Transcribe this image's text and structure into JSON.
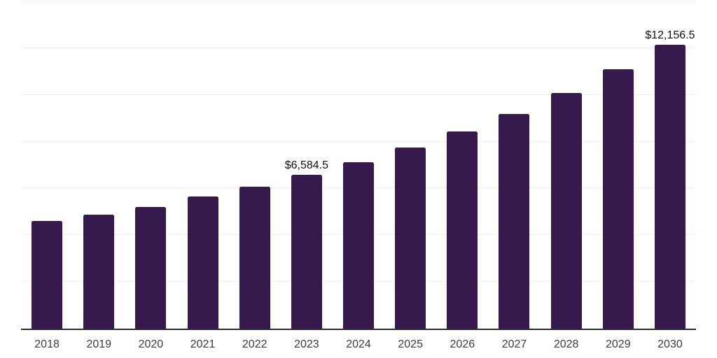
{
  "chart_data": {
    "type": "bar",
    "title": "",
    "xlabel": "",
    "ylabel": "",
    "categories": [
      "2018",
      "2019",
      "2020",
      "2021",
      "2022",
      "2023",
      "2024",
      "2025",
      "2026",
      "2027",
      "2028",
      "2029",
      "2030"
    ],
    "values": [
      4595,
      4890,
      5220,
      5640,
      6085,
      6584.5,
      7130,
      7760,
      8440,
      9190,
      10085,
      11100,
      12156.5
    ],
    "data_labels": [
      null,
      null,
      null,
      null,
      null,
      "$6,584.5",
      null,
      null,
      null,
      null,
      null,
      null,
      "$12,156.5"
    ],
    "ylim": [
      0,
      14000
    ],
    "grid_step": 2000,
    "grid": true,
    "legend": false,
    "colors": {
      "bar": "#371a4d",
      "gridline": "#f0f0f0",
      "axis_line": "#2b2b2b",
      "tick_label": "#3c3c3c",
      "data_label": "#111111",
      "background": "#ffffff"
    }
  }
}
